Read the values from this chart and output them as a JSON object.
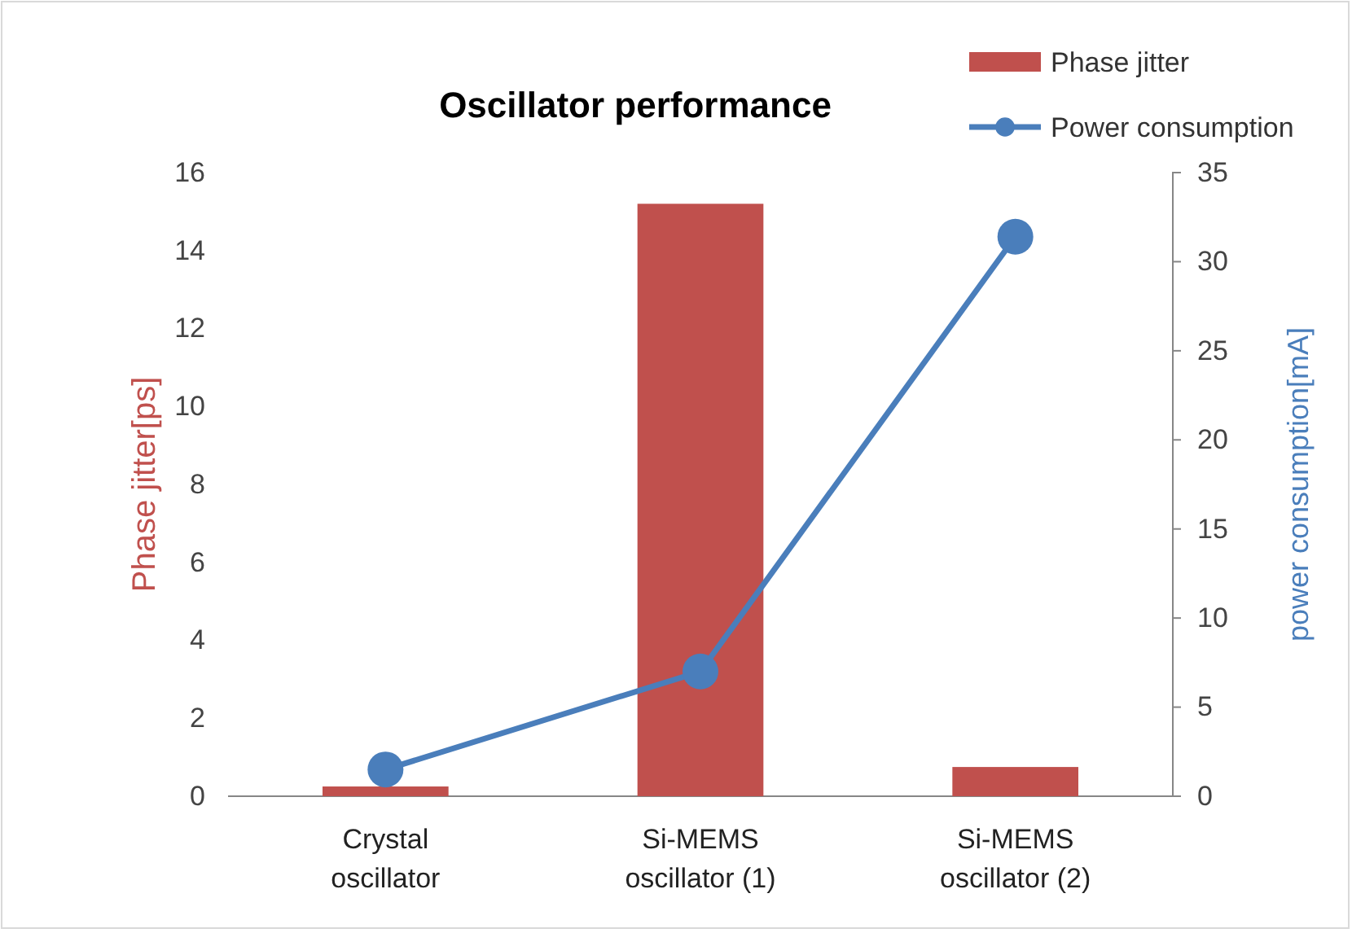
{
  "chart_data": {
    "type": "bar",
    "title": "Oscillator performance",
    "categories": [
      "Crystal oscillator",
      "Si-MEMS oscillator (1)",
      "Si-MEMS oscillator (2)"
    ],
    "series": [
      {
        "name": "Phase jitter",
        "color": "#c0504d",
        "values": [
          0.25,
          15.2,
          0.75
        ]
      },
      {
        "name": "Power consumption",
        "type": "line",
        "axis": "y2",
        "color": "#4a7ebb",
        "values": [
          1.5,
          7,
          31.4
        ]
      }
    ],
    "ylabel": "Phase jitter[ps]",
    "y2label": "power consumption[mA]",
    "ylim": [
      0,
      16
    ],
    "yticks": [
      0,
      2,
      4,
      6,
      8,
      10,
      12,
      14,
      16
    ],
    "y2lim": [
      0,
      35
    ],
    "y2ticks": [
      0,
      5,
      10,
      15,
      20,
      25,
      30,
      35
    ],
    "legend": "top right",
    "marker": "circle",
    "grid": false
  }
}
